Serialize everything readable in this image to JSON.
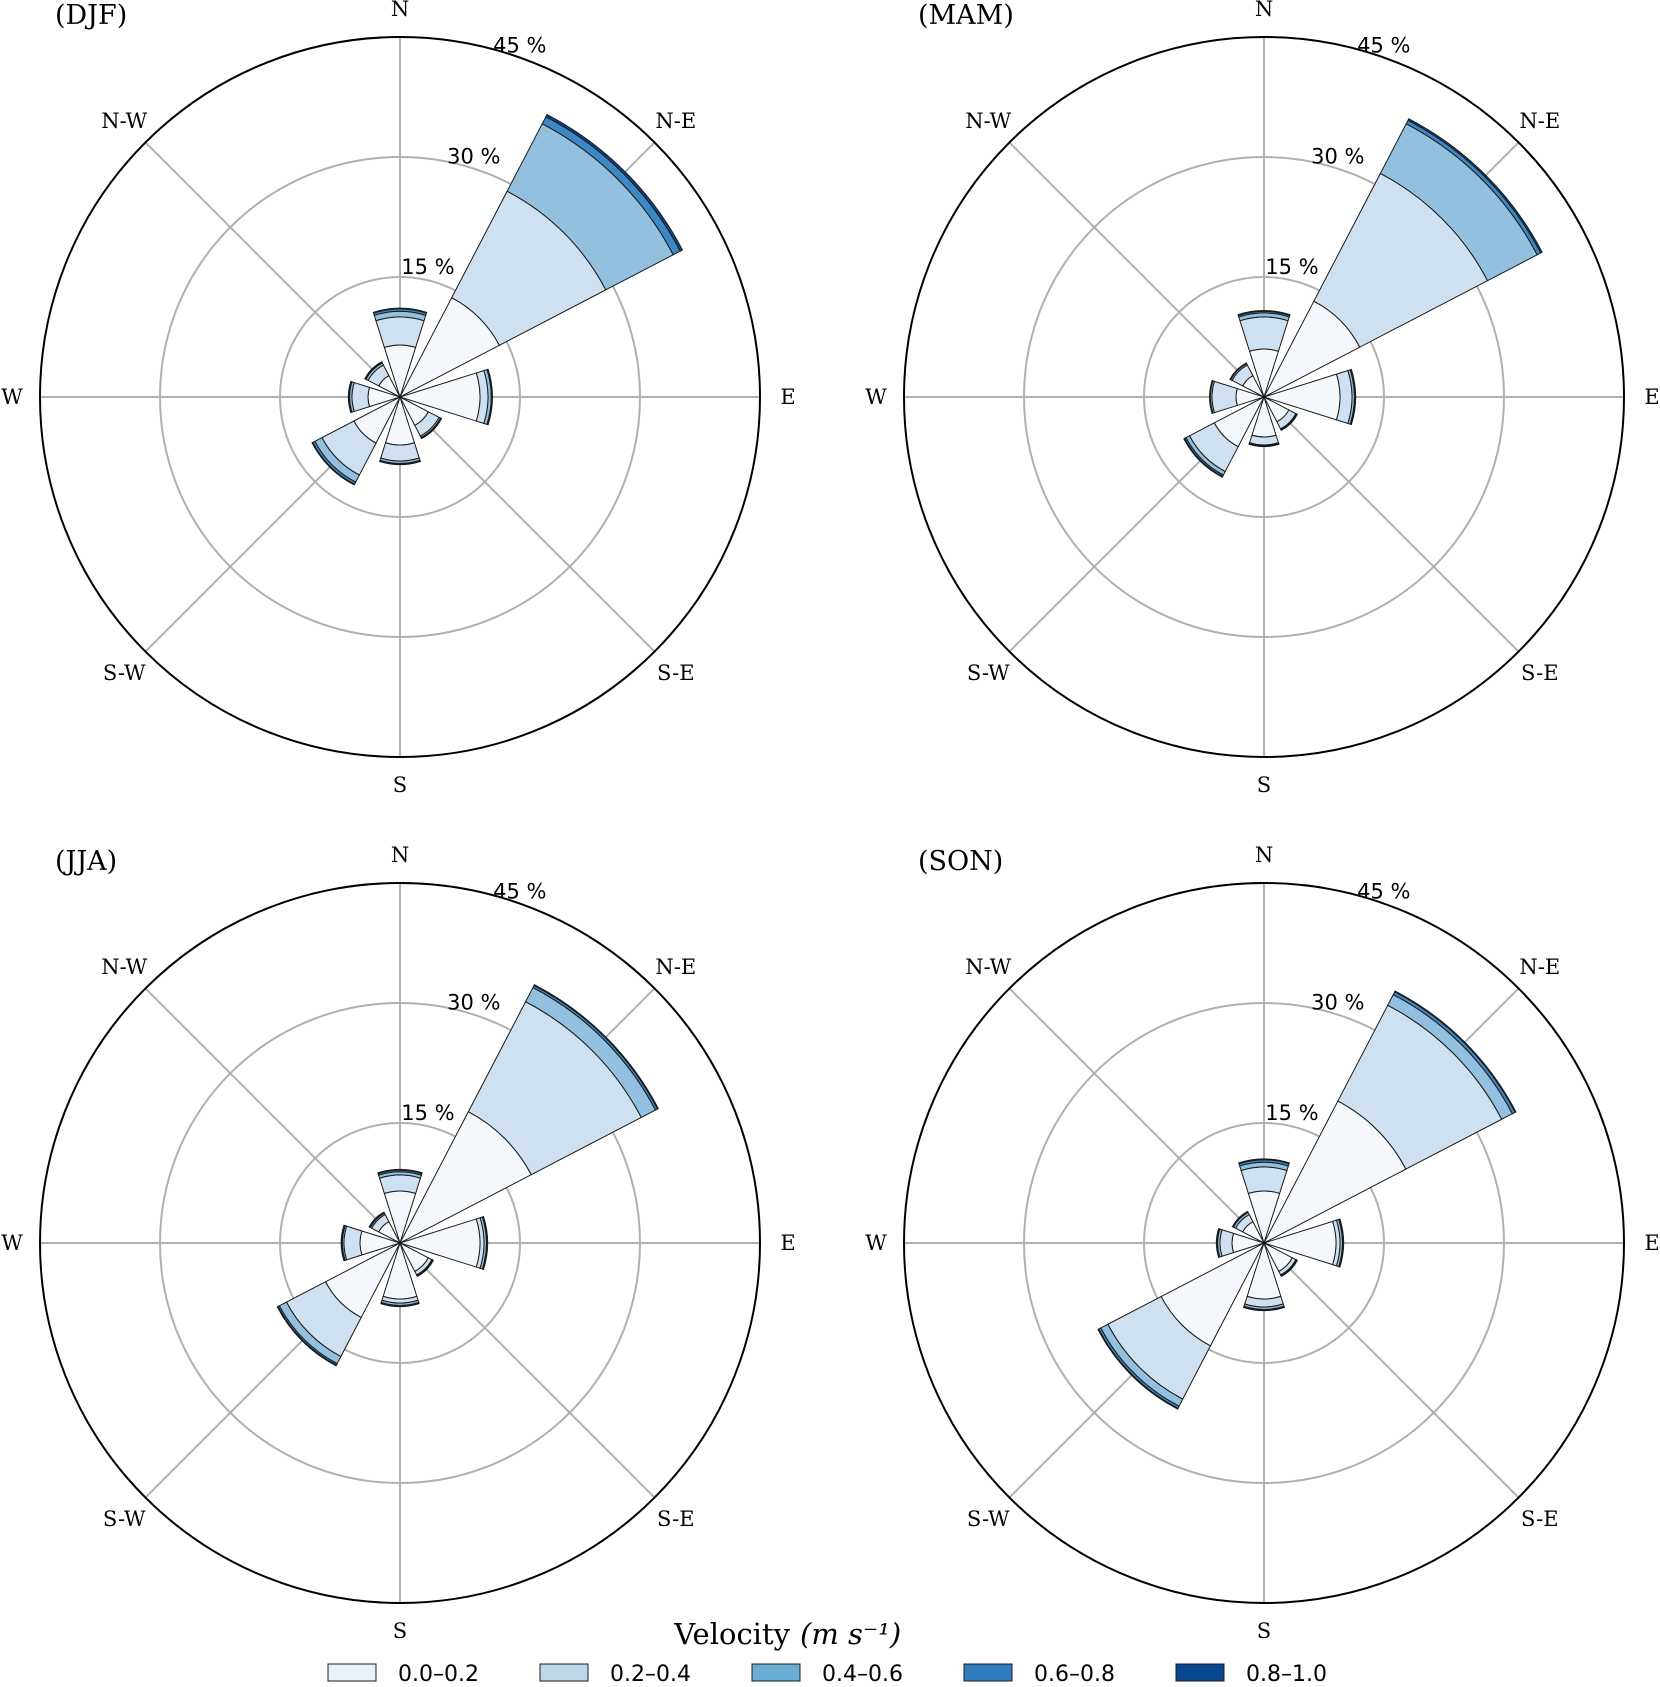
{
  "chart_data": [
    {
      "type": "bar",
      "subtype": "windrose",
      "title": "(DJF)",
      "directions": [
        "N",
        "N-E",
        "E",
        "S-E",
        "S",
        "S-W",
        "W",
        "N-W"
      ],
      "radial_ticks": [
        "15 %",
        "30 %",
        "45 %"
      ],
      "rmax": 45,
      "series": [
        {
          "name": "0.0–0.2",
          "values": [
            6.5,
            14.0,
            10.0,
            4.0,
            6.0,
            6.5,
            4.0,
            3.0
          ]
        },
        {
          "name": "0.2–0.4",
          "values": [
            3.5,
            15.0,
            1.0,
            1.5,
            2.0,
            4.5,
            2.0,
            1.5
          ]
        },
        {
          "name": "0.4–0.6",
          "values": [
            0.7,
            9.5,
            0.4,
            0.2,
            0.3,
            1.0,
            0.3,
            0.3
          ]
        },
        {
          "name": "0.6–0.8",
          "values": [
            0.3,
            1.0,
            0.1,
            0.1,
            0.1,
            0.3,
            0.1,
            0.1
          ]
        },
        {
          "name": "0.8–1.0",
          "values": [
            0.1,
            0.3,
            0.05,
            0.05,
            0.05,
            0.1,
            0.05,
            0.05
          ]
        }
      ]
    },
    {
      "type": "bar",
      "subtype": "windrose",
      "title": "(MAM)",
      "directions": [
        "N",
        "N-E",
        "E",
        "S-E",
        "S",
        "S-W",
        "W",
        "N-W"
      ],
      "radial_ticks": [
        "15 %",
        "30 %",
        "45 %"
      ],
      "rmax": 45,
      "series": [
        {
          "name": "0.0–0.2",
          "values": [
            6.0,
            13.5,
            9.5,
            3.5,
            5.0,
            7.0,
            3.5,
            3.0
          ]
        },
        {
          "name": "0.2–0.4",
          "values": [
            4.0,
            18.0,
            1.5,
            1.0,
            1.0,
            3.5,
            3.0,
            1.5
          ]
        },
        {
          "name": "0.4–0.6",
          "values": [
            0.5,
            7.0,
            0.3,
            0.1,
            0.1,
            0.5,
            0.2,
            0.2
          ]
        },
        {
          "name": "0.6–0.8",
          "values": [
            0.2,
            0.5,
            0.1,
            0.05,
            0.05,
            0.2,
            0.05,
            0.05
          ]
        },
        {
          "name": "0.8–1.0",
          "values": [
            0.1,
            0.2,
            0.05,
            0.05,
            0.05,
            0.1,
            0.05,
            0.05
          ]
        }
      ]
    },
    {
      "type": "bar",
      "subtype": "windrose",
      "title": "(JJA)",
      "directions": [
        "N",
        "N-E",
        "E",
        "S-E",
        "S",
        "S-W",
        "W",
        "N-W"
      ],
      "radial_ticks": [
        "15 %",
        "30 %",
        "45 %"
      ],
      "rmax": 45,
      "series": [
        {
          "name": "0.0–0.2",
          "values": [
            6.5,
            18.5,
            10.0,
            4.0,
            7.0,
            10.5,
            5.0,
            3.0
          ]
        },
        {
          "name": "0.2–0.4",
          "values": [
            2.0,
            15.5,
            0.5,
            0.5,
            0.5,
            5.5,
            2.0,
            1.0
          ]
        },
        {
          "name": "0.4–0.6",
          "values": [
            0.4,
            2.0,
            0.3,
            0.1,
            0.3,
            1.0,
            0.2,
            0.2
          ]
        },
        {
          "name": "0.6–0.8",
          "values": [
            0.2,
            0.3,
            0.1,
            0.05,
            0.1,
            0.2,
            0.1,
            0.1
          ]
        },
        {
          "name": "0.8–1.0",
          "values": [
            0.1,
            0.1,
            0.05,
            0.05,
            0.05,
            0.1,
            0.05,
            0.05
          ]
        }
      ]
    },
    {
      "type": "bar",
      "subtype": "windrose",
      "title": "(SON)",
      "directions": [
        "N",
        "N-E",
        "E",
        "S-E",
        "S",
        "S-W",
        "W",
        "N-W"
      ],
      "radial_ticks": [
        "15 %",
        "30 %",
        "45 %"
      ],
      "rmax": 45,
      "series": [
        {
          "name": "0.0–0.2",
          "values": [
            6.5,
            20.0,
            9.0,
            4.0,
            7.0,
            14.5,
            4.0,
            3.0
          ]
        },
        {
          "name": "0.2–0.4",
          "values": [
            3.0,
            13.5,
            0.5,
            0.5,
            1.0,
            7.5,
            1.5,
            1.0
          ]
        },
        {
          "name": "0.4–0.6",
          "values": [
            0.6,
            1.5,
            0.3,
            0.1,
            0.3,
            1.0,
            0.3,
            0.3
          ]
        },
        {
          "name": "0.6–0.8",
          "values": [
            0.3,
            0.4,
            0.1,
            0.05,
            0.1,
            0.3,
            0.1,
            0.1
          ]
        },
        {
          "name": "0.8–1.0",
          "values": [
            0.1,
            0.1,
            0.05,
            0.05,
            0.05,
            0.1,
            0.05,
            0.05
          ]
        }
      ]
    }
  ],
  "legend": {
    "title": "Velocity",
    "unit": "(m s⁻¹)",
    "placement": "bottom-center",
    "entries": [
      {
        "label": "0.0–0.2",
        "color": "#e8f1fa"
      },
      {
        "label": "0.2–0.4",
        "color": "#bcd6ea"
      },
      {
        "label": "0.4–0.6",
        "color": "#6aaed6"
      },
      {
        "label": "0.6–0.8",
        "color": "#2f7dbd"
      },
      {
        "label": "0.8–1.0",
        "color": "#08468f"
      }
    ]
  },
  "colors": {
    "bin_fill": [
      "#f4f8fc",
      "#cfe0f0",
      "#92c0de",
      "#3d87c4",
      "#08468f"
    ],
    "grid": "#b0b0b0"
  }
}
